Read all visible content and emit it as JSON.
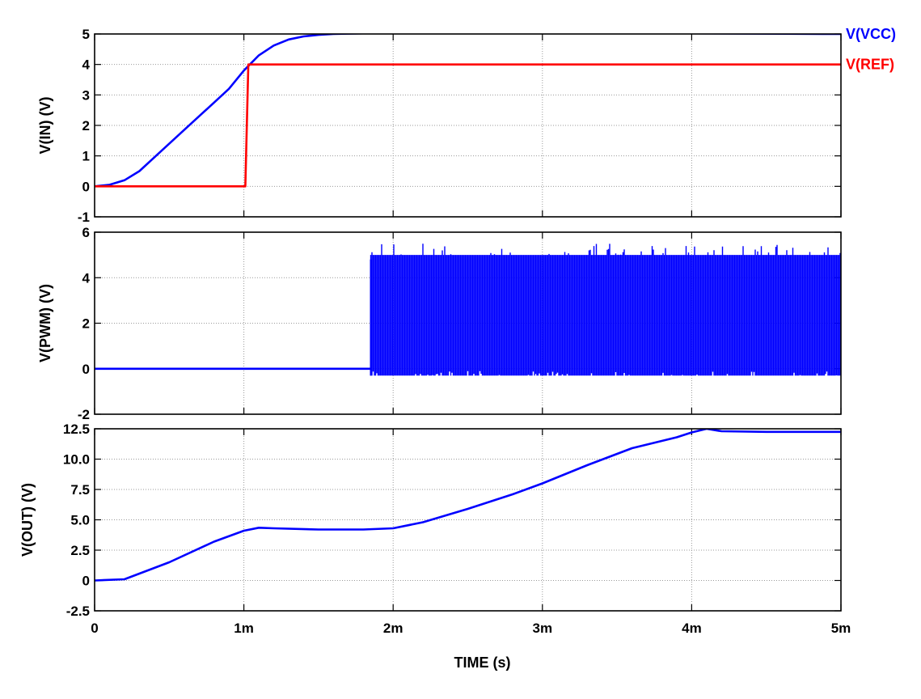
{
  "colors": {
    "series_blue": "#0000ff",
    "series_red": "#ff0000",
    "grid": "#999999",
    "axis": "#000000",
    "background": "#ffffff"
  },
  "chart_data": [
    {
      "type": "line",
      "ylabel": "V(IN)  (V)",
      "xlabel": "",
      "xlim": [
        0,
        5
      ],
      "ylim": [
        -1,
        5
      ],
      "yticks": [
        "-1",
        "0",
        "1",
        "2",
        "3",
        "4",
        "5"
      ],
      "xticks": [
        "0",
        "1m",
        "2m",
        "3m",
        "4m",
        "5m"
      ],
      "grid": true,
      "legend_placement": "right",
      "series": [
        {
          "name": "V(VCC)",
          "color": "#0000ff",
          "x": [
            0,
            0.1,
            0.2,
            0.3,
            0.4,
            0.5,
            0.6,
            0.7,
            0.8,
            0.9,
            1.0,
            1.1,
            1.2,
            1.3,
            1.4,
            1.5,
            1.6,
            1.8,
            2.0,
            2.5,
            3.0,
            4.0,
            5.0
          ],
          "y": [
            0,
            0.05,
            0.2,
            0.5,
            0.95,
            1.4,
            1.85,
            2.3,
            2.75,
            3.2,
            3.8,
            4.3,
            4.62,
            4.82,
            4.92,
            4.97,
            5.0,
            5.02,
            5.02,
            5.02,
            5.02,
            5.02,
            5.0
          ]
        },
        {
          "name": "V(REF)",
          "color": "#ff0000",
          "x": [
            0,
            1.01,
            1.03,
            5.0
          ],
          "y": [
            0,
            0,
            4,
            4
          ]
        }
      ]
    },
    {
      "type": "line",
      "ylabel": "V(PWM)  (V)",
      "xlabel": "",
      "xlim": [
        0,
        5
      ],
      "ylim": [
        -2,
        6
      ],
      "yticks": [
        "-2",
        "0",
        "2",
        "4",
        "6"
      ],
      "xticks": [
        "0",
        "1m",
        "2m",
        "3m",
        "4m",
        "5m"
      ],
      "grid": true,
      "series": [
        {
          "color": "#0000ff",
          "x": [
            0,
            1.85
          ],
          "y": [
            0,
            0
          ],
          "switching_start": 1.85,
          "switching_end": 5.0,
          "switching_high": 5.0,
          "switching_low": -0.3,
          "switching_peak": 5.5,
          "switching_trough": -0.5
        }
      ]
    },
    {
      "type": "line",
      "ylabel": "V(OUT)  (V)",
      "xlabel": "TIME  (s)",
      "xlim": [
        0,
        5
      ],
      "ylim": [
        -2.5,
        12.5
      ],
      "yticks": [
        "-2.5",
        "0",
        "2.5",
        "5.0",
        "7.5",
        "10.0",
        "12.5"
      ],
      "xticks": [
        "0",
        "1m",
        "2m",
        "3m",
        "4m",
        "5m"
      ],
      "grid": true,
      "series": [
        {
          "color": "#0000ff",
          "x": [
            0,
            0.2,
            0.5,
            0.8,
            1.0,
            1.1,
            1.2,
            1.5,
            1.8,
            2.0,
            2.2,
            2.5,
            2.8,
            3.0,
            3.3,
            3.6,
            3.9,
            4.0,
            4.1,
            4.2,
            4.5,
            5.0
          ],
          "y": [
            0,
            0.1,
            1.5,
            3.2,
            4.1,
            4.35,
            4.3,
            4.2,
            4.2,
            4.3,
            4.8,
            5.9,
            7.1,
            8.0,
            9.5,
            10.9,
            11.8,
            12.2,
            12.5,
            12.3,
            12.25,
            12.25
          ]
        }
      ]
    }
  ]
}
